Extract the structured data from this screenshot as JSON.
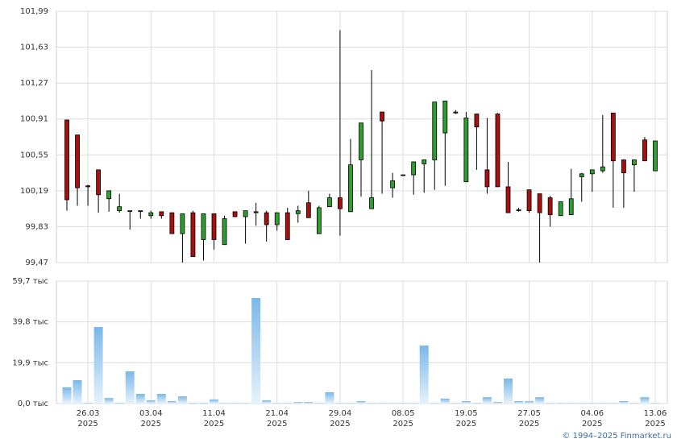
{
  "chart_data": {
    "type": "candlestick",
    "categories": [
      null,
      null,
      "26.03",
      null,
      null,
      null,
      null,
      null,
      "03.04",
      null,
      null,
      null,
      null,
      null,
      "11.04",
      null,
      null,
      null,
      null,
      null,
      "21.04",
      null,
      null,
      null,
      null,
      null,
      "29.04",
      null,
      null,
      null,
      null,
      null,
      "08.05",
      null,
      null,
      null,
      null,
      null,
      "19.05",
      null,
      null,
      null,
      null,
      null,
      "27.05",
      null,
      null,
      null,
      null,
      null,
      "04.06",
      null,
      null,
      null,
      null,
      null,
      "13.06"
    ],
    "category_years": [
      null,
      null,
      "2025",
      null,
      null,
      null,
      null,
      null,
      "2025",
      null,
      null,
      null,
      null,
      null,
      "2025",
      null,
      null,
      null,
      null,
      null,
      "2025",
      null,
      null,
      null,
      null,
      null,
      "2025",
      null,
      null,
      null,
      null,
      null,
      "2025",
      null,
      null,
      null,
      null,
      null,
      "2025",
      null,
      null,
      null,
      null,
      null,
      "2025",
      null,
      null,
      null,
      null,
      null,
      "2025",
      null,
      null,
      null,
      null,
      null,
      "2025"
    ],
    "open": [
      100.9,
      100.75,
      100.24,
      100.4,
      100.11,
      99.99,
      99.99,
      99.99,
      99.94,
      99.98,
      99.97,
      99.76,
      99.97,
      99.7,
      99.96,
      99.65,
      99.98,
      99.93,
      99.98,
      99.97,
      99.85,
      99.97,
      99.96,
      100.07,
      99.76,
      100.03,
      100.12,
      99.98,
      100.5,
      100.01,
      100.98,
      100.22,
      100.35,
      100.35,
      100.46,
      100.5,
      100.77,
      100.98,
      100.28,
      100.96,
      100.4,
      100.96,
      100.23,
      99.99,
      100.2,
      100.16,
      100.12,
      99.94,
      99.95,
      100.33,
      100.36,
      100.39,
      100.97,
      100.5,
      100.45,
      100.7,
      100.39
    ],
    "high": [
      100.9,
      100.75,
      100.25,
      100.4,
      100.19,
      100.16,
      99.99,
      99.99,
      99.99,
      99.98,
      99.97,
      99.96,
      99.99,
      99.96,
      99.96,
      99.94,
      99.98,
      99.99,
      100.07,
      99.99,
      99.97,
      100.02,
      100.04,
      100.19,
      100.04,
      100.16,
      101.8,
      100.71,
      100.87,
      101.4,
      100.98,
      100.37,
      100.35,
      100.48,
      100.5,
      101.08,
      101.09,
      101.0,
      100.98,
      100.96,
      100.92,
      100.97,
      100.48,
      100.02,
      100.2,
      100.16,
      100.14,
      100.08,
      100.41,
      100.37,
      100.4,
      100.95,
      100.97,
      100.5,
      100.5,
      100.73,
      100.69
    ],
    "low": [
      99.99,
      100.04,
      100.04,
      99.97,
      99.98,
      99.97,
      99.8,
      99.91,
      99.91,
      99.91,
      99.76,
      99.47,
      99.53,
      99.49,
      99.6,
      99.65,
      99.93,
      99.66,
      99.84,
      99.68,
      99.79,
      99.7,
      99.87,
      99.92,
      99.76,
      100.03,
      99.74,
      99.98,
      100.13,
      100.01,
      100.16,
      100.12,
      100.35,
      100.15,
      100.17,
      100.2,
      100.24,
      100.96,
      100.28,
      100.4,
      100.16,
      100.23,
      99.97,
      99.98,
      99.97,
      99.47,
      99.83,
      99.94,
      99.95,
      100.08,
      100.18,
      100.37,
      100.02,
      100.02,
      100.18,
      100.49,
      100.39
    ],
    "close": [
      100.1,
      100.22,
      100.23,
      100.15,
      100.19,
      100.03,
      99.99,
      99.99,
      99.97,
      99.94,
      99.76,
      99.96,
      99.53,
      99.96,
      99.7,
      99.91,
      99.93,
      99.99,
      99.97,
      99.85,
      99.97,
      99.7,
      99.99,
      99.92,
      100.02,
      100.12,
      100.01,
      100.45,
      100.87,
      100.12,
      100.89,
      100.29,
      100.35,
      100.48,
      100.5,
      101.08,
      101.09,
      100.97,
      100.92,
      100.83,
      100.23,
      100.23,
      99.97,
      100.0,
      99.99,
      99.97,
      99.95,
      100.08,
      100.11,
      100.36,
      100.4,
      100.43,
      100.49,
      100.37,
      100.5,
      100.49,
      100.69
    ],
    "up_color": "#2e9e2e",
    "down_color": "#a81010",
    "ylim": [
      99.47,
      101.99
    ],
    "yticks": [
      {
        "value": 99.47,
        "label": "99,47"
      },
      {
        "value": 99.83,
        "label": "99,83"
      },
      {
        "value": 100.19,
        "label": "100,19"
      },
      {
        "value": 100.55,
        "label": "100,55"
      },
      {
        "value": 100.91,
        "label": "100,91"
      },
      {
        "value": 101.27,
        "label": "101,27"
      },
      {
        "value": 101.63,
        "label": "101,63"
      },
      {
        "value": 101.99,
        "label": "101,99"
      }
    ],
    "grid": true,
    "volume": {
      "color": "#8cc4ec",
      "values": [
        7.9,
        11.4,
        0.4,
        37.3,
        2.7,
        0.4,
        15.7,
        4.7,
        1.6,
        4.7,
        1.2,
        3.5,
        0.4,
        0.4,
        2.0,
        0.3,
        0.3,
        0.3,
        51.5,
        1.6,
        0.3,
        0.3,
        0.8,
        0.8,
        0.3,
        5.5,
        0.3,
        0.3,
        1.2,
        0.3,
        0.3,
        0.3,
        0.3,
        0.3,
        28.3,
        0.3,
        2.4,
        0.3,
        1.2,
        0.3,
        3.1,
        0.8,
        12.2,
        1.2,
        1.2,
        3.1,
        0.3,
        0.3,
        0.3,
        0.3,
        0.3,
        0.3,
        0.3,
        1.2,
        0.3,
        3.1,
        0.3
      ],
      "ylim": [
        0,
        59.7
      ],
      "yticks": [
        {
          "value": 0,
          "label": "0,0 тыс"
        },
        {
          "value": 19.9,
          "label": "19,9 тыс"
        },
        {
          "value": 39.8,
          "label": "39,8 тыс"
        },
        {
          "value": 59.7,
          "label": "59,7 тыс"
        }
      ]
    }
  },
  "footer": "© 1994–2025 Finmarket.ru"
}
